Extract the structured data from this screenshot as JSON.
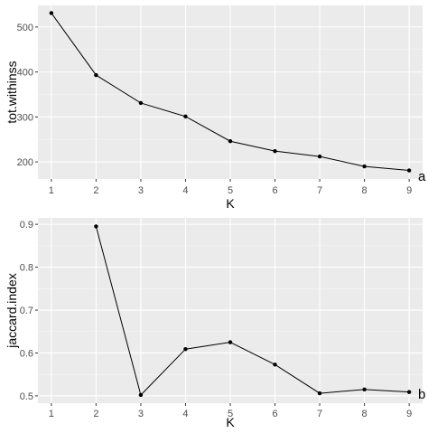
{
  "chart_data": [
    {
      "type": "line",
      "panel_label": "a",
      "xlabel": "K",
      "ylabel": "tot.withinss",
      "x": [
        1,
        2,
        3,
        4,
        5,
        6,
        7,
        8,
        9
      ],
      "y": [
        531,
        393,
        331,
        301,
        246,
        224,
        212,
        190,
        181
      ],
      "xticks": [
        "1",
        "2",
        "3",
        "4",
        "5",
        "6",
        "7",
        "8",
        "9"
      ],
      "yticks": [
        200,
        300,
        400,
        500
      ],
      "xlim": [
        0.7,
        9.3
      ],
      "ylim": [
        162,
        548
      ],
      "grid": true,
      "background_color": "#ebebeb",
      "line_color": "#000000"
    },
    {
      "type": "line",
      "panel_label": "b",
      "xlabel": "K",
      "ylabel": "jaccard.index",
      "x": [
        2,
        3,
        4,
        5,
        6,
        7,
        8,
        9
      ],
      "y": [
        0.895,
        0.502,
        0.609,
        0.625,
        0.573,
        0.506,
        0.515,
        0.509
      ],
      "xticks": [
        "1",
        "2",
        "3",
        "4",
        "5",
        "6",
        "7",
        "8",
        "9"
      ],
      "yticks": [
        0.5,
        0.6,
        0.7,
        0.8,
        0.9
      ],
      "xlim": [
        0.7,
        9.3
      ],
      "ylim": [
        0.483,
        0.915
      ],
      "grid": true,
      "background_color": "#ebebeb",
      "line_color": "#000000"
    }
  ]
}
